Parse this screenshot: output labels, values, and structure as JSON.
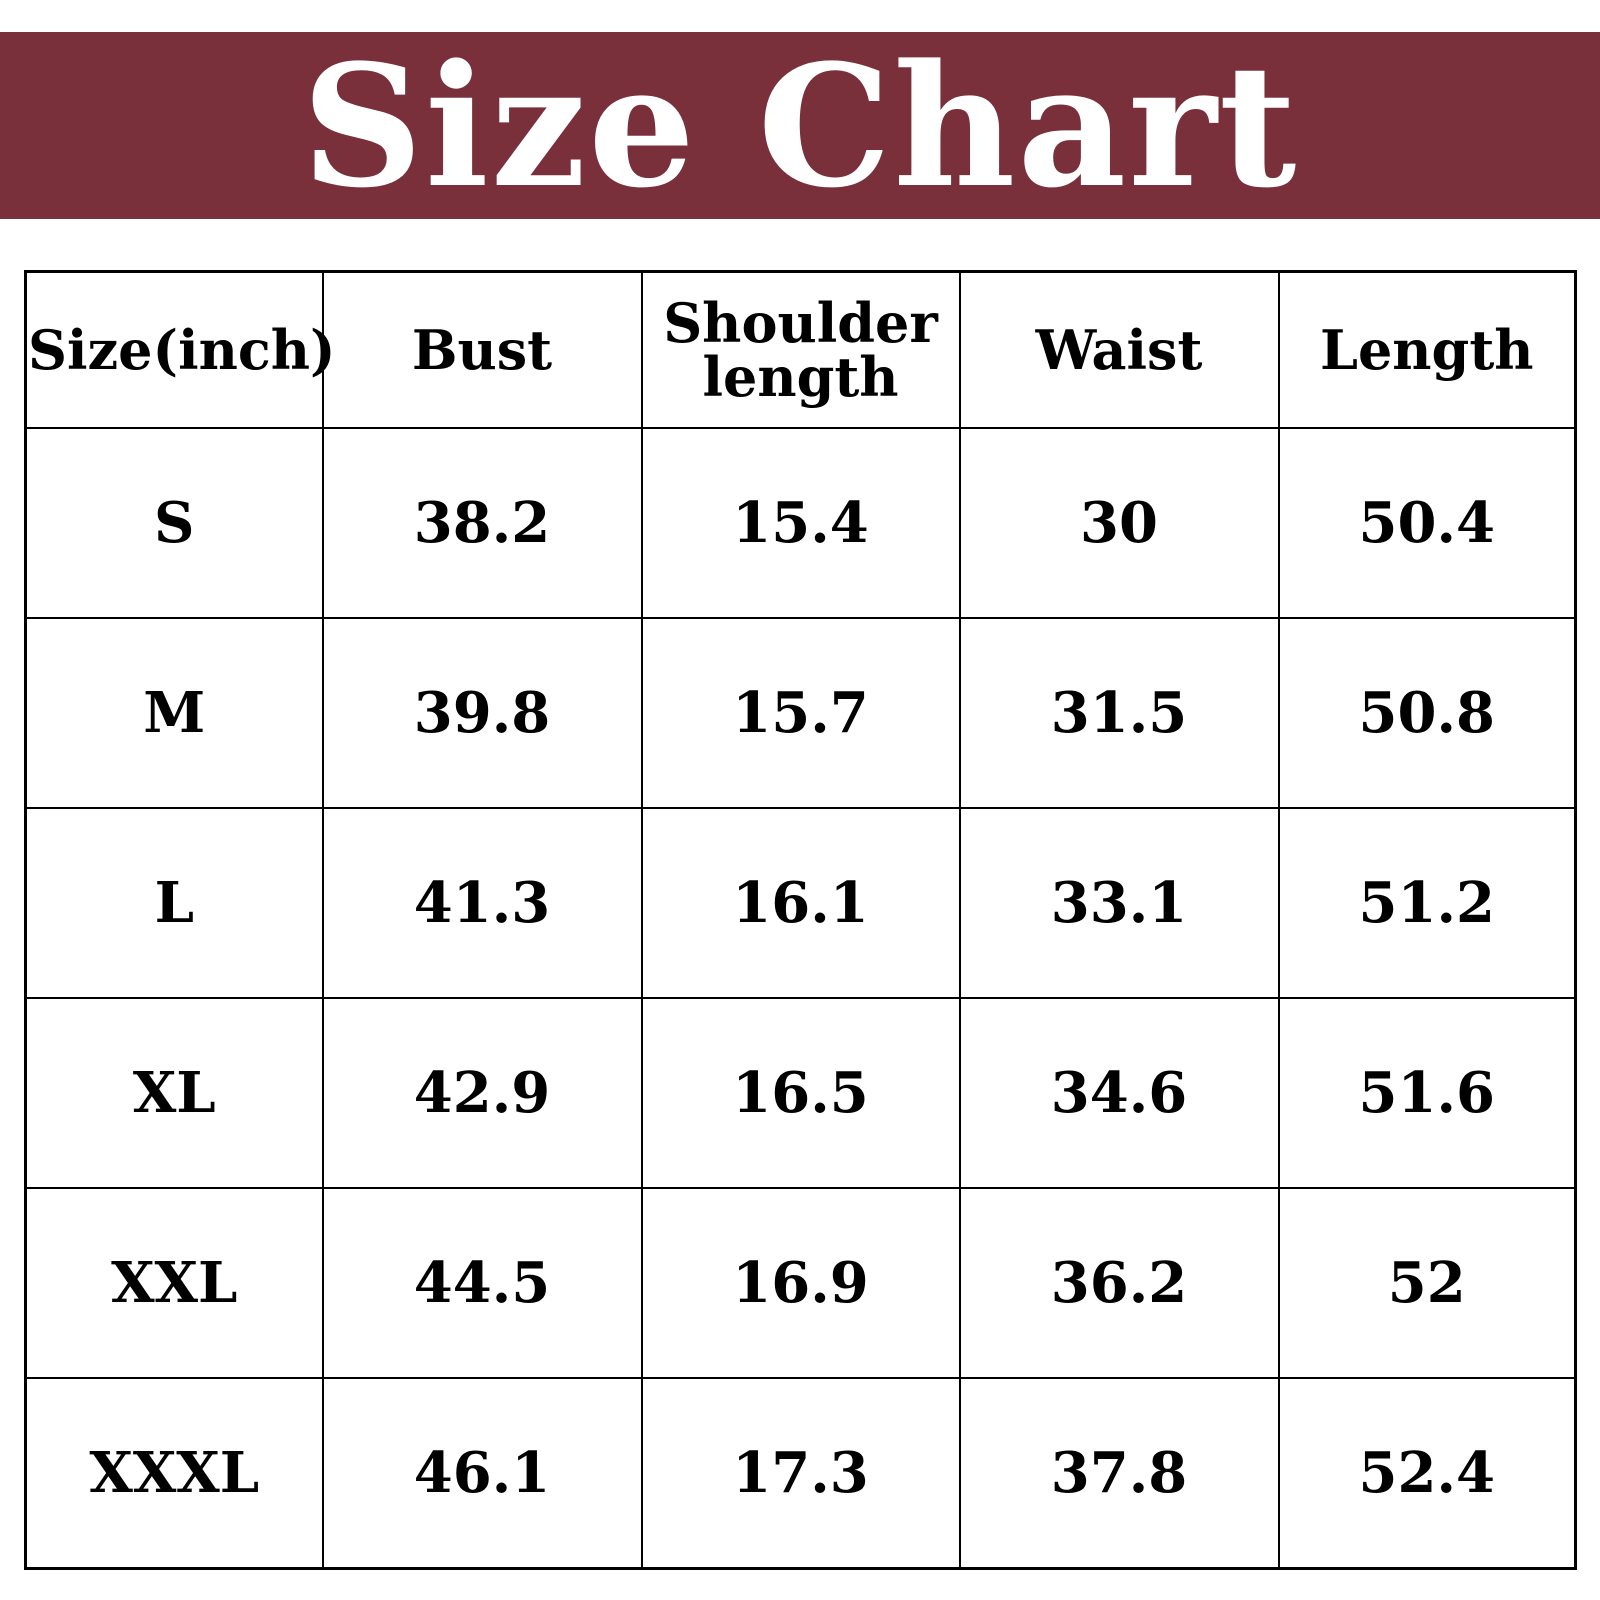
{
  "title": "Size Chart",
  "colors": {
    "banner": "#7a303a",
    "text": "#000000",
    "title_text": "#ffffff"
  },
  "table": {
    "headers": [
      "Size(inch)",
      "Bust",
      "Shoulder length",
      "Waist",
      "Length"
    ],
    "rows": [
      [
        "S",
        "38.2",
        "15.4",
        "30",
        "50.4"
      ],
      [
        "M",
        "39.8",
        "15.7",
        "31.5",
        "50.8"
      ],
      [
        "L",
        "41.3",
        "16.1",
        "33.1",
        "51.2"
      ],
      [
        "XL",
        "42.9",
        "16.5",
        "34.6",
        "51.6"
      ],
      [
        "XXL",
        "44.5",
        "16.9",
        "36.2",
        "52"
      ],
      [
        "XXXL",
        "46.1",
        "17.3",
        "37.8",
        "52.4"
      ]
    ]
  }
}
